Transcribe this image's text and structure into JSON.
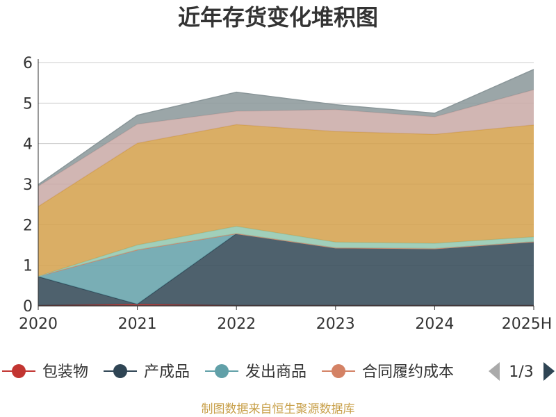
{
  "chart_data": {
    "type": "area",
    "title": "近年存货变化堆积图",
    "xlabel": "",
    "ylabel": "",
    "ylim": [
      0,
      6
    ],
    "yticks": [
      0,
      1,
      2,
      3,
      4,
      5,
      6
    ],
    "x": [
      "2020",
      "2021",
      "2022",
      "2023",
      "2024",
      "2025H"
    ],
    "series": [
      {
        "name": "包装物",
        "color": "#c23531",
        "values": [
          0.01,
          0.04,
          0.01,
          0.01,
          0.01,
          0.01
        ]
      },
      {
        "name": "产成品",
        "color": "#2f4554",
        "values": [
          0.71,
          0.0,
          1.77,
          1.42,
          1.4,
          1.57
        ]
      },
      {
        "name": "发出商品",
        "color": "#61a0a8",
        "values": [
          0.01,
          1.34,
          0.0,
          0.0,
          0.0,
          0.0
        ]
      },
      {
        "name": "合同履约成本",
        "color": "#d48265",
        "values": [
          0.0,
          0.0,
          0.0,
          0.0,
          0.0,
          0.0
        ]
      },
      {
        "color": "#91c7ae",
        "values": [
          0.0,
          0.12,
          0.18,
          0.14,
          0.13,
          0.12
        ]
      },
      {
        "color": "#d4a04a",
        "values": [
          1.72,
          2.51,
          2.51,
          2.73,
          2.69,
          2.76
        ]
      },
      {
        "color": "#c9a9a6",
        "values": [
          0.5,
          0.47,
          0.33,
          0.54,
          0.43,
          0.87
        ]
      },
      {
        "color": "#8a9699",
        "values": [
          0.04,
          0.22,
          0.47,
          0.12,
          0.09,
          0.5
        ]
      }
    ],
    "legend": {
      "position": "bottom",
      "page": "1/3"
    }
  },
  "source": "制图数据来自恒生聚源数据库"
}
